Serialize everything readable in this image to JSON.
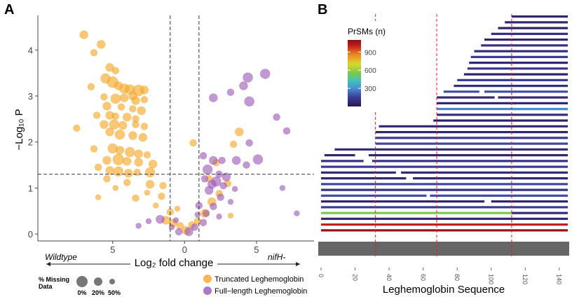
{
  "panels": {
    "a": "A",
    "b": "B"
  },
  "colors": {
    "truncated": "#F5A623",
    "fulllength": "#9B59B6",
    "truncated_dark": "#E8870A",
    "fulllength_dark": "#7B2D8E"
  },
  "chart_data": [
    {
      "type": "scatter",
      "panel": "A",
      "title": "",
      "xlabel": "Log₂ fold change",
      "ylabel": "−Log₁₀ P",
      "xlim": [
        -10.2,
        9.0
      ],
      "ylim": [
        -0.15,
        4.75
      ],
      "x_ticks": [
        {
          "value": -5,
          "label": "5"
        },
        {
          "value": 0,
          "label": "0"
        },
        {
          "value": 5,
          "label": "5"
        }
      ],
      "y_ticks": [
        0,
        1,
        2,
        3,
        4
      ],
      "threshold_lines": {
        "vertical": [
          -1,
          1
        ],
        "horizontal": 1.3
      },
      "direction_labels": {
        "left": "Wildtype",
        "right": "nifH-"
      },
      "legend_series": [
        "Truncated Leghemoglobin",
        "Full−length Leghemoglobin"
      ],
      "size_legend": {
        "title": "% Missing Data",
        "labels": [
          "0%",
          "20%",
          "50%"
        ]
      },
      "series": [
        {
          "name": "Truncated Leghemoglobin",
          "points": [
            [
              -7.0,
              4.33,
              6
            ],
            [
              -5.8,
              4.12,
              6
            ],
            [
              -6.3,
              3.94,
              5
            ],
            [
              -5.2,
              3.62,
              6
            ],
            [
              -4.8,
              3.55,
              5
            ],
            [
              -5.5,
              3.38,
              7
            ],
            [
              -5.0,
              3.3,
              8
            ],
            [
              -4.6,
              3.22,
              6
            ],
            [
              -6.5,
              3.2,
              5
            ],
            [
              -4.2,
              3.16,
              7
            ],
            [
              -3.8,
              3.14,
              7
            ],
            [
              -3.2,
              3.12,
              8
            ],
            [
              -2.8,
              3.13,
              6
            ],
            [
              -3.6,
              3.0,
              6
            ],
            [
              -5.6,
              2.98,
              5
            ],
            [
              -4.8,
              2.94,
              7
            ],
            [
              -4.2,
              2.96,
              6
            ],
            [
              -3.4,
              2.9,
              6
            ],
            [
              -2.8,
              2.92,
              5
            ],
            [
              -5.4,
              2.78,
              6
            ],
            [
              -4.4,
              2.76,
              5
            ],
            [
              -3.6,
              2.72,
              5
            ],
            [
              -3.0,
              2.68,
              6
            ],
            [
              -6.1,
              2.58,
              5
            ],
            [
              -5.2,
              2.58,
              6
            ],
            [
              -4.8,
              2.56,
              5
            ],
            [
              -4.0,
              2.54,
              6
            ],
            [
              -3.4,
              2.5,
              5
            ],
            [
              -5.6,
              2.38,
              6
            ],
            [
              -4.9,
              2.38,
              7
            ],
            [
              -4.3,
              2.36,
              6
            ],
            [
              -3.4,
              2.38,
              5
            ],
            [
              -2.8,
              2.34,
              5
            ],
            [
              -7.5,
              2.3,
              5
            ],
            [
              -5.2,
              2.22,
              6
            ],
            [
              -4.5,
              2.16,
              7
            ],
            [
              -3.6,
              2.14,
              6
            ],
            [
              -2.9,
              2.1,
              6
            ],
            [
              -6.3,
              1.85,
              5
            ],
            [
              -5.0,
              1.86,
              7
            ],
            [
              -4.5,
              1.82,
              6
            ],
            [
              -3.8,
              1.78,
              7
            ],
            [
              -3.2,
              1.74,
              6
            ],
            [
              -2.6,
              1.72,
              5
            ],
            [
              -5.4,
              1.6,
              6
            ],
            [
              -4.6,
              1.62,
              8
            ],
            [
              -4.0,
              1.58,
              6
            ],
            [
              -3.2,
              1.56,
              6
            ],
            [
              -2.2,
              1.52,
              6
            ],
            [
              -6.0,
              1.45,
              5
            ],
            [
              -5.2,
              1.38,
              6
            ],
            [
              -4.6,
              1.36,
              7
            ],
            [
              -3.9,
              1.32,
              6
            ],
            [
              -3.3,
              1.34,
              5
            ],
            [
              -2.4,
              1.34,
              7
            ],
            [
              -5.4,
              1.2,
              5
            ],
            [
              -4.0,
              1.12,
              5
            ],
            [
              -2.4,
              1.08,
              6
            ],
            [
              -6.0,
              0.8,
              4
            ],
            [
              -4.8,
              1.0,
              4
            ],
            [
              -3.4,
              0.78,
              5
            ],
            [
              -1.6,
              0.82,
              5
            ],
            [
              -2.0,
              0.62,
              4
            ],
            [
              -1.0,
              0.48,
              5
            ],
            [
              -1.3,
              0.3,
              6
            ],
            [
              -0.8,
              0.24,
              6
            ],
            [
              -0.3,
              0.18,
              5
            ],
            [
              0.1,
              0.08,
              6
            ],
            [
              0.5,
              0.2,
              5
            ],
            [
              0.9,
              0.28,
              5
            ],
            [
              1.4,
              0.45,
              6
            ],
            [
              1.9,
              0.7,
              6
            ],
            [
              2.4,
              0.88,
              5
            ],
            [
              1.7,
              1.2,
              5
            ],
            [
              2.2,
              1.55,
              5
            ],
            [
              0.6,
              1.98,
              5
            ],
            [
              3.8,
              2.22,
              6
            ],
            [
              3.4,
              1.95,
              5
            ],
            [
              3.0,
              1.1,
              5
            ],
            [
              -2.6,
              0.9,
              4
            ],
            [
              -1.5,
              1.05,
              5
            ],
            [
              -0.5,
              0.55,
              4
            ],
            [
              3.2,
              0.4,
              4
            ]
          ]
        },
        {
          "name": "Full−length Leghemoglobin",
          "points": [
            [
              5.6,
              3.48,
              7
            ],
            [
              4.4,
              3.4,
              7
            ],
            [
              4.1,
              3.22,
              6
            ],
            [
              3.2,
              3.08,
              5
            ],
            [
              4.5,
              2.88,
              7
            ],
            [
              2.0,
              2.96,
              6
            ],
            [
              6.4,
              2.54,
              5
            ],
            [
              7.1,
              2.24,
              5
            ],
            [
              4.5,
              1.98,
              5
            ],
            [
              5.1,
              1.62,
              7
            ],
            [
              3.6,
              1.6,
              6
            ],
            [
              4.3,
              1.5,
              5
            ],
            [
              2.0,
              1.6,
              6
            ],
            [
              1.6,
              1.4,
              7
            ],
            [
              2.4,
              1.3,
              5
            ],
            [
              2.9,
              1.24,
              6
            ],
            [
              1.4,
              1.2,
              5
            ],
            [
              2.2,
              1.14,
              7
            ],
            [
              1.9,
              1.08,
              6
            ],
            [
              2.7,
              1.05,
              5
            ],
            [
              3.5,
              0.98,
              4
            ],
            [
              1.7,
              0.95,
              6
            ],
            [
              2.5,
              0.8,
              5
            ],
            [
              1.0,
              0.62,
              5
            ],
            [
              2.0,
              0.6,
              5
            ],
            [
              3.2,
              0.7,
              4
            ],
            [
              1.5,
              0.45,
              5
            ],
            [
              2.4,
              0.38,
              4
            ],
            [
              1.3,
              0.25,
              5
            ],
            [
              0.7,
              0.15,
              5
            ],
            [
              0.3,
              0.05,
              6
            ],
            [
              -0.4,
              0.05,
              5
            ],
            [
              -0.9,
              0.15,
              4
            ],
            [
              -1.7,
              0.32,
              6
            ],
            [
              -2.5,
              0.28,
              4
            ],
            [
              -3.2,
              0.18,
              4
            ],
            [
              -0.6,
              0.3,
              4
            ],
            [
              0.9,
              0.42,
              4
            ],
            [
              7.8,
              0.45,
              4
            ],
            [
              6.8,
              1.0,
              4
            ],
            [
              2.6,
              1.6,
              5
            ],
            [
              1.3,
              1.7,
              5
            ]
          ]
        }
      ]
    },
    {
      "type": "bar",
      "panel": "B",
      "subtype": "peptide coverage map",
      "xlabel": "Leghemoglobin Sequence",
      "xlim": [
        0,
        145
      ],
      "x_ticks": [
        0,
        20,
        40,
        60,
        80,
        100,
        120,
        140
      ],
      "reference_lines": [
        32,
        68,
        112
      ],
      "color_scale": {
        "title": "PrSMs (n)",
        "range": [
          0,
          1100
        ],
        "ticks": [
          300,
          600,
          900
        ],
        "stops": [
          {
            "value": 0,
            "color": "#2a1650"
          },
          {
            "value": 150,
            "color": "#3b3b98"
          },
          {
            "value": 300,
            "color": "#4a8fd0"
          },
          {
            "value": 420,
            "color": "#40c0c0"
          },
          {
            "value": 550,
            "color": "#7ac94a"
          },
          {
            "value": 700,
            "color": "#d8d830"
          },
          {
            "value": 850,
            "color": "#f08a20"
          },
          {
            "value": 1000,
            "color": "#c02020"
          },
          {
            "value": 1100,
            "color": "#8a1010"
          }
        ]
      },
      "full_sequence_bar": {
        "start": 0,
        "end": 145,
        "color": "#666666"
      },
      "rows": [
        {
          "start": 112,
          "end": 145,
          "prsm": 60
        },
        {
          "start": 108,
          "end": 145,
          "prsm": 70
        },
        {
          "start": 104,
          "end": 145,
          "prsm": 40
        },
        {
          "start": 100,
          "end": 145,
          "prsm": 90
        },
        {
          "start": 96,
          "end": 145,
          "prsm": 60
        },
        {
          "start": 94,
          "end": 145,
          "prsm": 110
        },
        {
          "start": 90,
          "end": 145,
          "prsm": 80
        },
        {
          "start": 88,
          "end": 145,
          "prsm": 140
        },
        {
          "start": 87,
          "end": 145,
          "prsm": 60
        },
        {
          "start": 86,
          "end": 145,
          "prsm": 120
        },
        {
          "start": 84,
          "end": 145,
          "prsm": 40
        },
        {
          "start": 80,
          "end": 145,
          "prsm": 140
        },
        {
          "start": 78,
          "end": 145,
          "prsm": 100
        },
        {
          "start": 72,
          "end": 145,
          "prsm": 180,
          "gaps": [
            [
              93,
              96
            ]
          ]
        },
        {
          "start": 68,
          "end": 145,
          "prsm": 70,
          "gaps": [
            [
              102,
              104
            ]
          ]
        },
        {
          "start": 68,
          "end": 145,
          "prsm": 60
        },
        {
          "start": 68,
          "end": 145,
          "prsm": 280,
          "lowcolor_end": 112
        },
        {
          "start": 68,
          "end": 145,
          "prsm": 90
        },
        {
          "start": 66,
          "end": 145,
          "prsm": 50
        },
        {
          "start": 34,
          "end": 145,
          "prsm": 80
        },
        {
          "start": 32,
          "end": 145,
          "prsm": 60
        },
        {
          "start": 32,
          "end": 145,
          "prsm": 130
        },
        {
          "start": 32,
          "end": 145,
          "prsm": 170
        },
        {
          "start": 8,
          "end": 145,
          "prsm": 90
        },
        {
          "start": 2,
          "end": 145,
          "prsm": 60,
          "gaps": [
            [
              20,
              28
            ]
          ]
        },
        {
          "start": 0,
          "end": 145,
          "prsm": 110,
          "gaps": [
            [
              25,
              30
            ]
          ]
        },
        {
          "start": 0,
          "end": 145,
          "prsm": 140
        },
        {
          "start": 0,
          "end": 145,
          "prsm": 80,
          "gaps": [
            [
              44,
              47
            ]
          ]
        },
        {
          "start": 0,
          "end": 145,
          "prsm": 60,
          "gaps": [
            [
              50,
              54
            ]
          ]
        },
        {
          "start": 0,
          "end": 145,
          "prsm": 170
        },
        {
          "start": 0,
          "end": 145,
          "prsm": 100
        },
        {
          "start": 0,
          "end": 145,
          "prsm": 180,
          "gaps": [
            [
              62,
              64
            ]
          ]
        },
        {
          "start": 0,
          "end": 145,
          "prsm": 60,
          "gaps": [
            [
              96,
              100
            ]
          ]
        },
        {
          "start": 0,
          "end": 145,
          "prsm": 140
        },
        {
          "start": 0,
          "end": 112,
          "prsm": 550,
          "tail_end": 145,
          "tail_prsm": 80
        },
        {
          "start": 0,
          "end": 145,
          "prsm": 70
        },
        {
          "start": 0,
          "end": 145,
          "prsm": 1000
        },
        {
          "start": 0,
          "end": 145,
          "prsm": 1080
        }
      ]
    }
  ]
}
